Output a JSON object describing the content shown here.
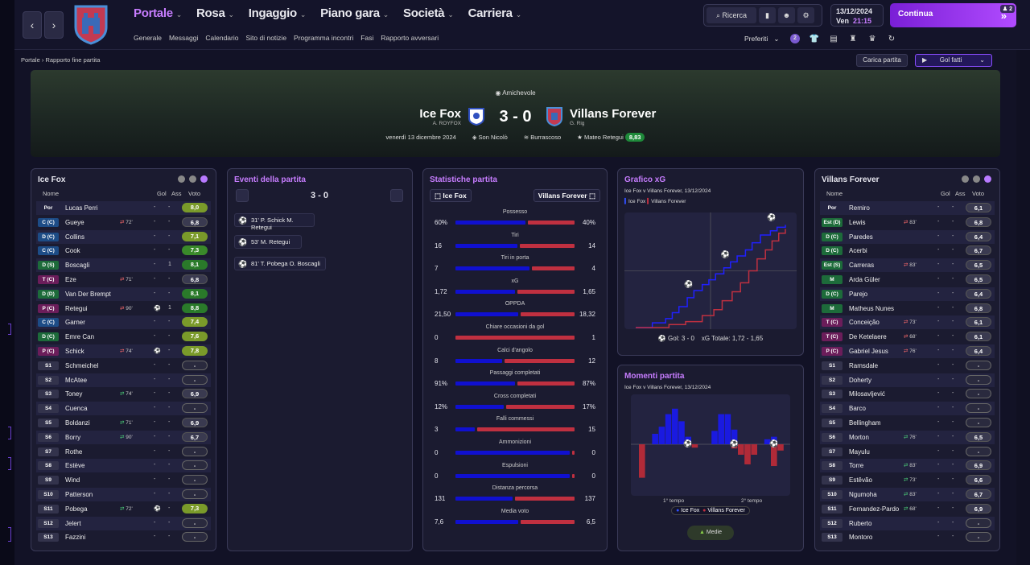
{
  "nav": {
    "back": "‹",
    "forward": "›"
  },
  "menu": [
    {
      "label": "Portale",
      "active": true
    },
    {
      "label": "Rosa"
    },
    {
      "label": "Ingaggio"
    },
    {
      "label": "Piano gara"
    },
    {
      "label": "Società"
    },
    {
      "label": "Carriera"
    }
  ],
  "submenu": [
    "Generale",
    "Messaggi",
    "Calendario",
    "Sito di notizie",
    "Programma incontri",
    "Fasi",
    "Rapporto avversari"
  ],
  "toolbar": {
    "search_label": "Ricerca"
  },
  "date": {
    "day": "13/12/2024",
    "weekday": "Ven",
    "time": "21:15"
  },
  "continue": {
    "label": "Continua",
    "badge": "2"
  },
  "favourites": {
    "label": "Preferiti",
    "badge": "2"
  },
  "breadcrumb": {
    "root": "Portale",
    "current": "Rapporto fine partita"
  },
  "actions": {
    "load": "Carica partita",
    "goals": "Gol fatti"
  },
  "match": {
    "competition": "Amichevole",
    "home": "Ice Fox",
    "home_manager": "A. ROYFOX",
    "away": "Villans Forever",
    "away_manager": "G. Rig",
    "score": "3 - 0",
    "date": "venerdì 13 dicembre 2024",
    "stadium": "Son Nicolò",
    "weather": "Burrascoso",
    "best_player": "Mateo Retegui",
    "best_rating": "8,83"
  },
  "home_panel": {
    "title": "Ice Fox",
    "headers": {
      "name": "Nome",
      "gol": "Gol",
      "ass": "Ass",
      "voto": "Voto"
    },
    "players": [
      {
        "pos": "Por",
        "type": "gk",
        "name": "Lucas Perri",
        "sw": "",
        "gol": "-",
        "ass": "-",
        "voto": "8,0",
        "c": "g1"
      },
      {
        "pos": "C (C)",
        "type": "def",
        "name": "Gueye",
        "sw": "72'",
        "swt": "out",
        "gol": "-",
        "ass": "-",
        "voto": "6,8",
        "c": "gr"
      },
      {
        "pos": "D (C)",
        "type": "def",
        "name": "Collins",
        "sw": "",
        "gol": "-",
        "ass": "-",
        "voto": "7,1",
        "c": "g1"
      },
      {
        "pos": "C (C)",
        "type": "def",
        "name": "Cook",
        "sw": "",
        "gol": "-",
        "ass": "-",
        "voto": "7,3",
        "c": "g2"
      },
      {
        "pos": "D (S)",
        "type": "mid",
        "name": "Boscagli",
        "sw": "",
        "gol": "-",
        "ass": "1",
        "voto": "8,1",
        "c": "g3"
      },
      {
        "pos": "T (C)",
        "type": "att",
        "name": "Eze",
        "sw": "71'",
        "swt": "out",
        "gol": "-",
        "ass": "-",
        "voto": "6,8",
        "c": "gr"
      },
      {
        "pos": "D (D)",
        "type": "mid",
        "name": "Van Der Brempt",
        "sw": "",
        "gol": "-",
        "ass": "-",
        "voto": "8,1",
        "c": "g3"
      },
      {
        "pos": "P (C)",
        "type": "att",
        "name": "Retegui",
        "sw": "90'",
        "swt": "out",
        "gol": "⚽",
        "ass": "1",
        "voto": "8,8",
        "c": "g3"
      },
      {
        "pos": "C (C)",
        "type": "def",
        "name": "Garner",
        "sw": "",
        "gol": "-",
        "ass": "-",
        "voto": "7,4",
        "c": "g1"
      },
      {
        "pos": "D (C)",
        "type": "mid",
        "name": "Emre Can",
        "sw": "",
        "gol": "-",
        "ass": "-",
        "voto": "7,6",
        "c": "g1"
      },
      {
        "pos": "P (C)",
        "type": "att",
        "name": "Schick",
        "sw": "74'",
        "swt": "out",
        "gol": "⚽",
        "ass": "-",
        "voto": "7,8",
        "c": "g1"
      },
      {
        "pos": "S1",
        "type": "sub",
        "name": "Schmeichel",
        "sw": "",
        "gol": "-",
        "ass": "-",
        "voto": "-",
        "c": "na"
      },
      {
        "pos": "S2",
        "type": "sub",
        "name": "McAtee",
        "sw": "",
        "gol": "-",
        "ass": "-",
        "voto": "-",
        "c": "na"
      },
      {
        "pos": "S3",
        "type": "sub",
        "name": "Toney",
        "sw": "74'",
        "swt": "in",
        "gol": "-",
        "ass": "-",
        "voto": "6,9",
        "c": "gr"
      },
      {
        "pos": "S4",
        "type": "sub",
        "name": "Cuenca",
        "sw": "",
        "gol": "-",
        "ass": "-",
        "voto": "-",
        "c": "na"
      },
      {
        "pos": "S5",
        "type": "sub",
        "name": "Boldanzi",
        "sw": "71'",
        "swt": "in",
        "gol": "-",
        "ass": "-",
        "voto": "6,9",
        "c": "gr"
      },
      {
        "pos": "S6",
        "type": "sub",
        "name": "Borry",
        "sw": "90'",
        "swt": "in",
        "gol": "-",
        "ass": "-",
        "voto": "6,7",
        "c": "gr"
      },
      {
        "pos": "S7",
        "type": "sub",
        "name": "Rothe",
        "sw": "",
        "gol": "-",
        "ass": "-",
        "voto": "-",
        "c": "na"
      },
      {
        "pos": "S8",
        "type": "sub",
        "name": "Estève",
        "sw": "",
        "gol": "-",
        "ass": "-",
        "voto": "-",
        "c": "na"
      },
      {
        "pos": "S9",
        "type": "sub",
        "name": "Wind",
        "sw": "",
        "gol": "-",
        "ass": "-",
        "voto": "-",
        "c": "na"
      },
      {
        "pos": "S10",
        "type": "sub",
        "name": "Patterson",
        "sw": "",
        "gol": "-",
        "ass": "-",
        "voto": "-",
        "c": "na"
      },
      {
        "pos": "S11",
        "type": "sub",
        "name": "Pobega",
        "sw": "72'",
        "swt": "in",
        "gol": "⚽",
        "ass": "-",
        "voto": "7,3",
        "c": "g1"
      },
      {
        "pos": "S12",
        "type": "sub",
        "name": "Jelert",
        "sw": "",
        "gol": "-",
        "ass": "-",
        "voto": "-",
        "c": "na"
      },
      {
        "pos": "S13",
        "type": "sub",
        "name": "Fazzini",
        "sw": "",
        "gol": "-",
        "ass": "-",
        "voto": "-",
        "c": "na"
      }
    ]
  },
  "events": {
    "title": "Eventi della partita",
    "score": "3 - 0",
    "items": [
      {
        "text": "31' P. Schick  M. Retegui"
      },
      {
        "text": "53' M. Retegui"
      },
      {
        "text": "81' T. Pobega  O. Boscagli"
      }
    ]
  },
  "stats": {
    "title": "Statistiche partita",
    "home": "Ice Fox",
    "away": "Villans Forever",
    "rows": [
      {
        "label": "Possesso",
        "l": "60%",
        "r": "40%",
        "lf": 0.6
      },
      {
        "label": "Tiri",
        "l": "16",
        "r": "14",
        "lf": 0.533
      },
      {
        "label": "Tiri in porta",
        "l": "7",
        "r": "4",
        "lf": 0.636
      },
      {
        "label": "xG",
        "l": "1,72",
        "r": "1,65",
        "lf": 0.51
      },
      {
        "label": "OPPDA",
        "l": "21,50",
        "r": "18,32",
        "lf": 0.54
      },
      {
        "label": "Chiare occasioni da gol",
        "l": "0",
        "r": "1",
        "lf": 0.0
      },
      {
        "label": "Calci d'angolo",
        "l": "8",
        "r": "12",
        "lf": 0.4
      },
      {
        "label": "Passaggi completati",
        "l": "91%",
        "r": "87%",
        "lf": 0.511
      },
      {
        "label": "Cross completati",
        "l": "12%",
        "r": "17%",
        "lf": 0.414
      },
      {
        "label": "Falli commessi",
        "l": "3",
        "r": "15",
        "lf": 0.167
      },
      {
        "label": "Ammonizioni",
        "l": "0",
        "r": "0",
        "lf": 0.98
      },
      {
        "label": "Espulsioni",
        "l": "0",
        "r": "0",
        "lf": 0.98
      },
      {
        "label": "Distanza percorsa",
        "l": "131",
        "r": "137",
        "lf": 0.489
      },
      {
        "label": "Media voto",
        "l": "7,6",
        "r": "6,5",
        "lf": 0.539
      }
    ]
  },
  "xg_panel": {
    "title": "Grafico xG",
    "subtitle": "Ice Fox v Villans Forever, 13/12/2024",
    "legend_home": "Ice Fox",
    "legend_away": "Villans Forever",
    "footer_goals": "Gol: 3 - 0",
    "footer_xg": "xG Totale: 1,72 - 1,65"
  },
  "chart_data": [
    {
      "type": "line",
      "title": "Grafico xG",
      "subtitle": "Ice Fox v Villans Forever, 13/12/2024",
      "series": [
        {
          "name": "Ice Fox",
          "x": [
            0,
            10,
            18,
            22,
            26,
            31,
            35,
            40,
            44,
            48,
            53,
            57,
            61,
            66,
            70,
            75,
            81,
            85,
            90
          ],
          "values": [
            0,
            0.08,
            0.15,
            0.25,
            0.35,
            0.5,
            0.62,
            0.72,
            0.8,
            0.9,
            1.0,
            1.1,
            1.2,
            1.3,
            1.42,
            1.55,
            1.62,
            1.68,
            1.72
          ]
        },
        {
          "name": "Villans Forever",
          "x": [
            0,
            20,
            30,
            40,
            47,
            52,
            58,
            63,
            68,
            73,
            78,
            82,
            86,
            90
          ],
          "values": [
            0,
            0.05,
            0.1,
            0.2,
            0.3,
            0.45,
            0.6,
            0.75,
            0.95,
            1.15,
            1.3,
            1.45,
            1.58,
            1.65
          ]
        }
      ],
      "goals_home_minutes": [
        31,
        53,
        81
      ]
    },
    {
      "type": "bar",
      "title": "Momenti partita",
      "subtitle": "Ice Fox v Villans Forever, 13/12/2024",
      "xlabels": [
        "1° tempo",
        "2° tempo"
      ],
      "series": [
        {
          "name": "Ice Fox",
          "values": [
            0,
            0,
            0.25,
            0.42,
            0.72,
            0.85,
            0.55,
            0.18,
            0,
            0,
            0,
            0.32,
            0.72,
            0.72,
            0.35,
            0,
            0,
            0,
            0,
            0.12,
            0.18,
            0
          ]
        },
        {
          "name": "Villans Forever",
          "values": [
            -0.8,
            0,
            0,
            0,
            0,
            0,
            0,
            0,
            -0.08,
            0,
            0,
            0,
            0,
            0,
            -0.1,
            -0.25,
            -0.48,
            -0.25,
            0,
            0,
            -0.52,
            -0.15
          ]
        }
      ],
      "goals_after_bar": [
        7,
        14,
        20
      ]
    }
  ],
  "moments": {
    "title": "Momenti partita",
    "subtitle": "Ice Fox v Villans Forever, 13/12/2024",
    "half1": "1° tempo",
    "half2": "2° tempo",
    "legend_home": "Ice Fox",
    "legend_away": "Villans Forever",
    "button": "Medie"
  },
  "away_panel": {
    "title": "Villans Forever",
    "headers": {
      "name": "Nome",
      "gol": "Gol",
      "ass": "Ass",
      "voto": "Voto"
    },
    "players": [
      {
        "pos": "Por",
        "type": "gk",
        "name": "Remiro",
        "sw": "",
        "gol": "-",
        "ass": "-",
        "voto": "6,1",
        "c": "gr"
      },
      {
        "pos": "Est (D)",
        "type": "mid",
        "name": "Lewis",
        "sw": "83'",
        "swt": "out",
        "gol": "-",
        "ass": "-",
        "voto": "6,8",
        "c": "gr"
      },
      {
        "pos": "D (C)",
        "type": "mid",
        "name": "Paredes",
        "sw": "",
        "gol": "-",
        "ass": "-",
        "voto": "6,4",
        "c": "gr"
      },
      {
        "pos": "D (C)",
        "type": "mid",
        "name": "Acerbi",
        "sw": "",
        "gol": "-",
        "ass": "-",
        "voto": "6,7",
        "c": "gr"
      },
      {
        "pos": "Est (S)",
        "type": "mid",
        "name": "Carreras",
        "sw": "83'",
        "swt": "out",
        "gol": "-",
        "ass": "-",
        "voto": "6,5",
        "c": "gr"
      },
      {
        "pos": "M",
        "type": "mid",
        "name": "Arda Güler",
        "sw": "",
        "gol": "-",
        "ass": "-",
        "voto": "6,5",
        "c": "gr"
      },
      {
        "pos": "D (C)",
        "type": "mid",
        "name": "Parejo",
        "sw": "",
        "gol": "-",
        "ass": "-",
        "voto": "6,4",
        "c": "gr"
      },
      {
        "pos": "M",
        "type": "mid",
        "name": "Matheus Nunes",
        "sw": "",
        "gol": "-",
        "ass": "-",
        "voto": "6,8",
        "c": "gr"
      },
      {
        "pos": "T (C)",
        "type": "att",
        "name": "Conceição",
        "sw": "73'",
        "swt": "out",
        "gol": "-",
        "ass": "-",
        "voto": "6,1",
        "c": "gr"
      },
      {
        "pos": "T (C)",
        "type": "att",
        "name": "De Ketelaere",
        "sw": "68'",
        "swt": "out",
        "gol": "-",
        "ass": "-",
        "voto": "6,1",
        "c": "gr"
      },
      {
        "pos": "P (C)",
        "type": "att",
        "name": "Gabriel Jesus",
        "sw": "76'",
        "swt": "out",
        "gol": "-",
        "ass": "-",
        "voto": "6,4",
        "c": "gr"
      },
      {
        "pos": "S1",
        "type": "sub",
        "name": "Ramsdale",
        "sw": "",
        "gol": "-",
        "ass": "-",
        "voto": "-",
        "c": "na"
      },
      {
        "pos": "S2",
        "type": "sub",
        "name": "Doherty",
        "sw": "",
        "gol": "-",
        "ass": "-",
        "voto": "-",
        "c": "na"
      },
      {
        "pos": "S3",
        "type": "sub",
        "name": "Milosavljević",
        "sw": "",
        "gol": "-",
        "ass": "-",
        "voto": "-",
        "c": "na"
      },
      {
        "pos": "S4",
        "type": "sub",
        "name": "Barco",
        "sw": "",
        "gol": "-",
        "ass": "-",
        "voto": "-",
        "c": "na"
      },
      {
        "pos": "S5",
        "type": "sub",
        "name": "Bellingham",
        "sw": "",
        "gol": "-",
        "ass": "-",
        "voto": "-",
        "c": "na"
      },
      {
        "pos": "S6",
        "type": "sub",
        "name": "Morton",
        "sw": "76'",
        "swt": "in",
        "gol": "-",
        "ass": "-",
        "voto": "6,5",
        "c": "gr"
      },
      {
        "pos": "S7",
        "type": "sub",
        "name": "Mayulu",
        "sw": "",
        "gol": "-",
        "ass": "-",
        "voto": "-",
        "c": "na"
      },
      {
        "pos": "S8",
        "type": "sub",
        "name": "Torre",
        "sw": "83'",
        "swt": "in",
        "gol": "-",
        "ass": "-",
        "voto": "6,9",
        "c": "gr"
      },
      {
        "pos": "S9",
        "type": "sub",
        "name": "Estêvão",
        "sw": "73'",
        "swt": "in",
        "gol": "-",
        "ass": "-",
        "voto": "6,6",
        "c": "gr"
      },
      {
        "pos": "S10",
        "type": "sub",
        "name": "Ngumoha",
        "sw": "83'",
        "swt": "in",
        "gol": "-",
        "ass": "-",
        "voto": "6,7",
        "c": "gr"
      },
      {
        "pos": "S11",
        "type": "sub",
        "name": "Fernandez-Pardo",
        "sw": "68'",
        "swt": "in",
        "gol": "-",
        "ass": "-",
        "voto": "6,9",
        "c": "gr"
      },
      {
        "pos": "S12",
        "type": "sub",
        "name": "Ruberto",
        "sw": "",
        "gol": "-",
        "ass": "-",
        "voto": "-",
        "c": "na"
      },
      {
        "pos": "S13",
        "type": "sub",
        "name": "Montoro",
        "sw": "",
        "gol": "-",
        "ass": "-",
        "voto": "-",
        "c": "na"
      }
    ]
  },
  "colors": {
    "accent": "#c77dff",
    "home": "#1010d0",
    "away": "#c03040"
  }
}
